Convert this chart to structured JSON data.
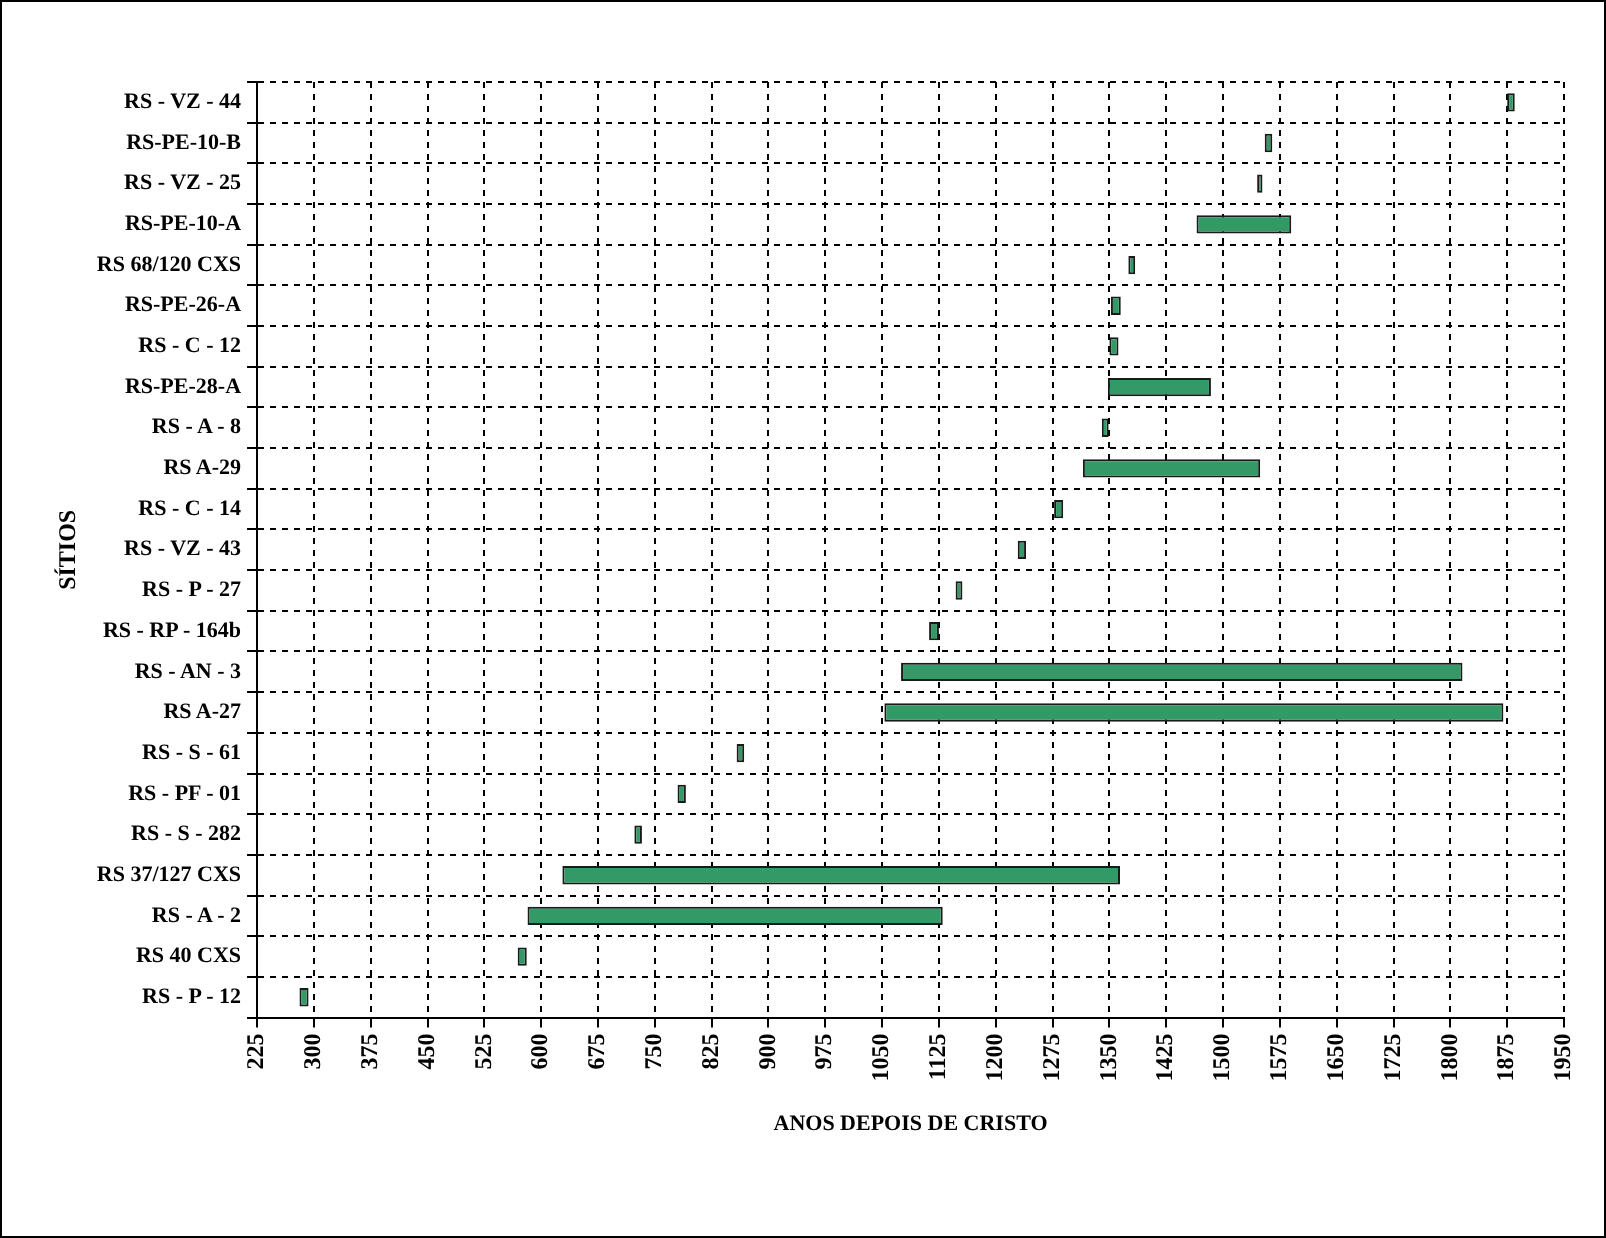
{
  "chart_data": {
    "type": "bar",
    "orientation": "horizontal",
    "xlabel": "ANOS DEPOIS DE CRISTO",
    "ylabel": "SÍTIOS",
    "categories": [
      "RS - VZ - 44",
      "RS-PE-10-B",
      "RS - VZ - 25",
      "RS-PE-10-A",
      "RS 68/120 CXS",
      "RS-PE-26-A",
      "RS - C - 12",
      "RS-PE-28-A",
      "RS - A - 8",
      "RS A-29",
      "RS - C - 14",
      "RS - VZ - 43",
      "RS - P - 27",
      "RS - RP - 164b",
      "RS - AN - 3",
      "RS A-27",
      "RS - S - 61",
      "RS - PF - 01",
      "RS - S - 282",
      "RS 37/127 CXS",
      "RS - A - 2",
      "RS 40 CXS",
      "RS - P - 12"
    ],
    "base": [
      1875,
      1555,
      1545,
      1465,
      1375,
      1352,
      1350,
      1348,
      1340,
      1315,
      1277,
      1229,
      1147,
      1112,
      1075,
      1053,
      858,
      780,
      723,
      628,
      582,
      569,
      281
    ],
    "values": [
      10,
      10,
      7,
      125,
      9,
      13,
      12,
      136,
      9,
      234,
      12,
      11,
      9,
      13,
      741,
      817,
      10,
      11,
      10,
      736,
      548,
      12,
      12
    ],
    "color": "#339966",
    "xlim": [
      225,
      1950
    ],
    "xticks": [
      225,
      300,
      375,
      450,
      525,
      600,
      675,
      750,
      825,
      900,
      975,
      1050,
      1125,
      1200,
      1275,
      1350,
      1425,
      1500,
      1575,
      1650,
      1725,
      1800,
      1875,
      1950
    ],
    "grid": true,
    "legend": false
  }
}
